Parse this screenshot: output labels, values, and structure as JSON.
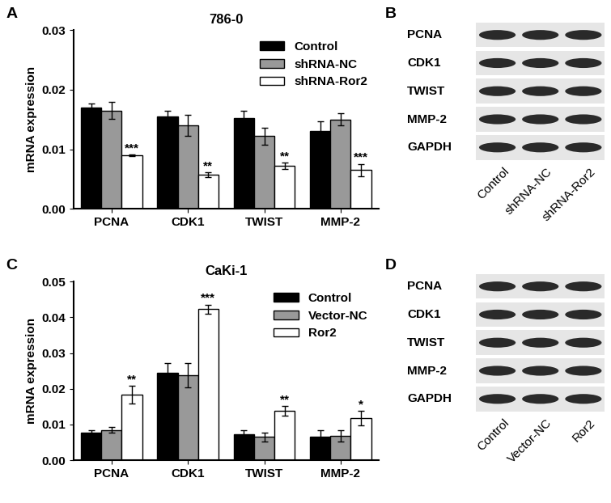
{
  "chart_data": [
    {
      "panel": "A",
      "type": "bar",
      "title": "786-0",
      "y_label": "mRNA expression",
      "categories": [
        "PCNA",
        "CDK1",
        "TWIST",
        "MMP-2"
      ],
      "series": [
        {
          "name": "Control",
          "color": "#000000",
          "values": [
            0.017,
            0.0155,
            0.0152,
            0.013
          ],
          "errors": [
            0.0007,
            0.0009,
            0.0013,
            0.0017
          ]
        },
        {
          "name": "shRNA-NC",
          "color": "#999999",
          "values": [
            0.0165,
            0.014,
            0.0122,
            0.015
          ],
          "errors": [
            0.0014,
            0.0018,
            0.0014,
            0.001
          ]
        },
        {
          "name": "shRNA-Ror2",
          "color": "#ffffff",
          "values": [
            0.009,
            0.0057,
            0.0072,
            0.0065
          ],
          "errors": [
            0.0001,
            0.0004,
            0.0005,
            0.001
          ],
          "significance": [
            "***",
            "**",
            "**",
            "***"
          ]
        }
      ],
      "ylim": [
        0,
        0.03
      ],
      "yticks": [
        {
          "value": 0,
          "label": "0.00"
        },
        {
          "value": 0.01,
          "label": "0.01"
        },
        {
          "value": 0.02,
          "label": "0.02"
        },
        {
          "value": 0.03,
          "label": "0.03"
        }
      ],
      "legend": "upper right"
    },
    {
      "panel": "C",
      "type": "bar",
      "title": "CaKi-1",
      "y_label": "mRNA expression",
      "categories": [
        "PCNA",
        "CDK1",
        "TWIST",
        "MMP-2"
      ],
      "series": [
        {
          "name": "Control",
          "color": "#000000",
          "values": [
            0.0077,
            0.0245,
            0.0072,
            0.0065
          ],
          "errors": [
            0.0006,
            0.0027,
            0.0012,
            0.0018
          ]
        },
        {
          "name": "Vector-NC",
          "color": "#999999",
          "values": [
            0.0085,
            0.0238,
            0.0065,
            0.0068
          ],
          "errors": [
            0.0008,
            0.0035,
            0.0013,
            0.0015
          ]
        },
        {
          "name": "Ror2",
          "color": "#ffffff",
          "values": [
            0.0183,
            0.0423,
            0.0138,
            0.0118
          ],
          "errors": [
            0.0025,
            0.0012,
            0.0013,
            0.002
          ],
          "significance": [
            "**",
            "***",
            "**",
            "*"
          ]
        }
      ],
      "ylim": [
        0,
        0.05
      ],
      "yticks": [
        {
          "value": 0,
          "label": "0.00"
        },
        {
          "value": 0.01,
          "label": "0.01"
        },
        {
          "value": 0.02,
          "label": "0.02"
        },
        {
          "value": 0.03,
          "label": "0.03"
        },
        {
          "value": 0.04,
          "label": "0.04"
        },
        {
          "value": 0.05,
          "label": "0.05"
        }
      ],
      "legend": "upper right"
    }
  ],
  "blots": [
    {
      "panel": "B",
      "proteins": [
        "PCNA",
        "CDK1",
        "TWIST",
        "MMP-2",
        "GAPDH"
      ],
      "lanes": [
        "Control",
        "shRNA-NC",
        "shRNA-Ror2"
      ]
    },
    {
      "panel": "D",
      "proteins": [
        "PCNA",
        "CDK1",
        "TWIST",
        "MMP-2",
        "GAPDH"
      ],
      "lanes": [
        "Control",
        "Vector-NC",
        "Ror2"
      ]
    }
  ]
}
